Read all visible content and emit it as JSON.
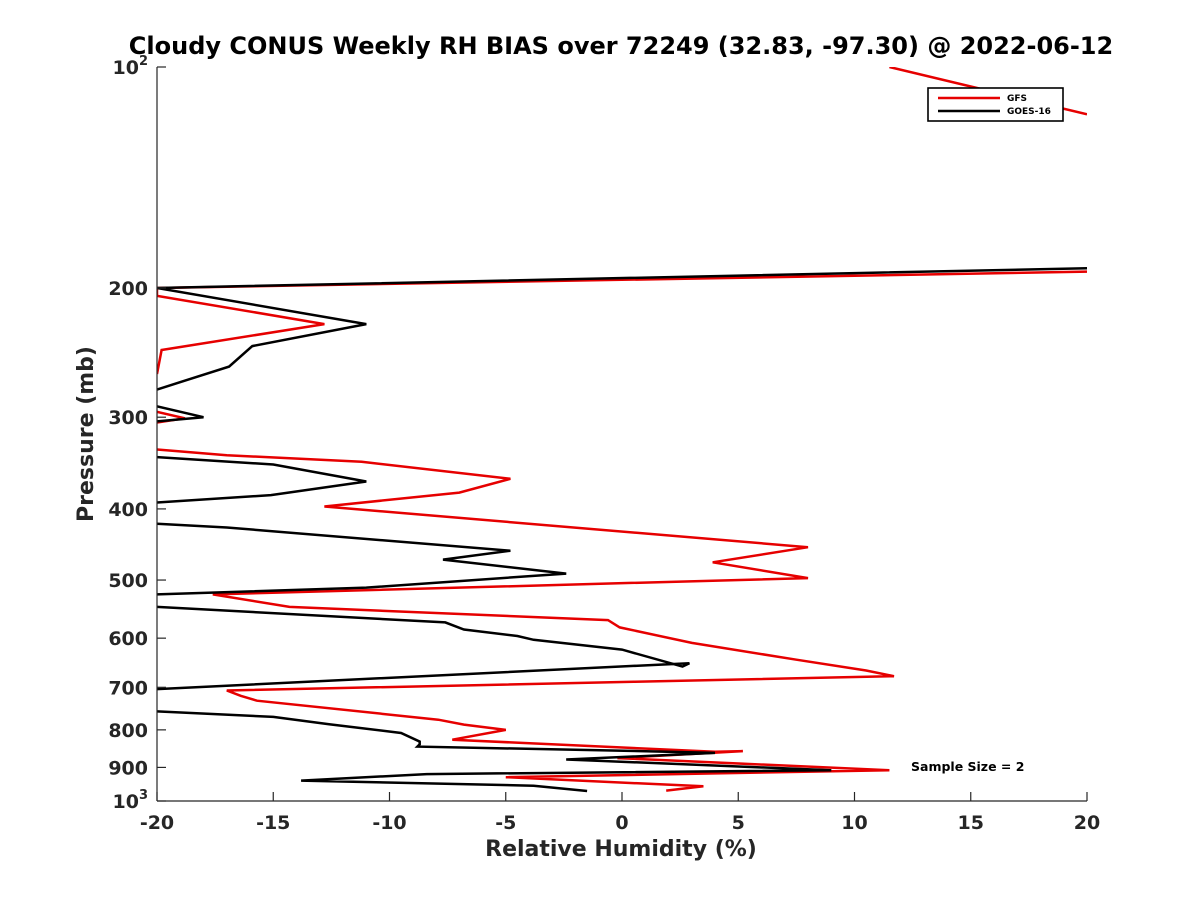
{
  "chart_data": {
    "type": "line",
    "title": "Cloudy CONUS Weekly RH BIAS over 72249 (32.83, -97.30) @ 2022-06-12",
    "xlabel": "Relative Humidity (%)",
    "ylabel": "Pressure (mb)",
    "xlim": [
      -20,
      20
    ],
    "ylim": [
      100,
      1000
    ],
    "y_scale": "log",
    "y_reversed": true,
    "x_ticks": [
      "-20",
      "-15",
      "-10",
      "-5",
      "0",
      "5",
      "10",
      "15",
      "20"
    ],
    "y_ticks": [
      {
        "value": 100,
        "base": "10",
        "exp": "2"
      },
      {
        "value": 200,
        "label": "200"
      },
      {
        "value": 300,
        "label": "300"
      },
      {
        "value": 400,
        "label": "400"
      },
      {
        "value": 500,
        "label": "500"
      },
      {
        "value": 600,
        "label": "600"
      },
      {
        "value": 700,
        "label": "700"
      },
      {
        "value": 800,
        "label": "800"
      },
      {
        "value": 900,
        "label": "900"
      },
      {
        "value": 1000,
        "base": "10",
        "exp": "3"
      }
    ],
    "grid": false,
    "legend_position": "top-right",
    "annotation": "Sample Size = 2",
    "series": [
      {
        "name": "GFS",
        "color": "#e60000",
        "points": [
          [
            11.5,
            100
          ],
          [
            20,
            116
          ],
          [
            null,
            null
          ],
          [
            20,
            190
          ],
          [
            -20,
            200
          ],
          [
            -20,
            205
          ],
          [
            -12.8,
            224
          ],
          [
            -19.8,
            243
          ],
          [
            -20,
            262
          ],
          [
            null,
            null
          ],
          [
            -20,
            295
          ],
          [
            -18.8,
            301
          ],
          [
            -20,
            305
          ],
          [
            null,
            null
          ],
          [
            -20,
            332
          ],
          [
            -17,
            338
          ],
          [
            -11.2,
            345
          ],
          [
            -4.8,
            364
          ],
          [
            -7,
            380
          ],
          [
            -12.8,
            397
          ],
          [
            8,
            451
          ],
          [
            3.9,
            473
          ],
          [
            8,
            497
          ],
          [
            -17.6,
            523
          ],
          [
            -14.3,
            544
          ],
          [
            -0.6,
            567
          ],
          [
            -0.1,
            580
          ],
          [
            3,
            609
          ],
          [
            7.5,
            642
          ],
          [
            10.5,
            664
          ],
          [
            11.7,
            676
          ],
          [
            0.5,
            688
          ],
          [
            -17,
            707
          ],
          [
            -16.4,
            719
          ],
          [
            -15.7,
            730
          ],
          [
            -7.9,
            775
          ],
          [
            -6.8,
            787
          ],
          [
            -5,
            800
          ],
          [
            -7.3,
            825
          ],
          [
            4,
            857
          ],
          [
            5.2,
            855
          ],
          [
            -0.2,
            874
          ],
          [
            11.5,
            908
          ],
          [
            -5,
            928
          ],
          [
            3.5,
            955
          ],
          [
            1.9,
            968
          ]
        ]
      },
      {
        "name": "GOES-16",
        "color": "#000000",
        "points": [
          [
            20,
            188
          ],
          [
            -20,
            200
          ],
          [
            -11,
            224
          ],
          [
            -15.9,
            240
          ],
          [
            -16.9,
            256
          ],
          [
            -20,
            275
          ],
          [
            null,
            null
          ],
          [
            -20,
            290
          ],
          [
            -18,
            300
          ],
          [
            -20,
            304
          ],
          [
            null,
            null
          ],
          [
            -20,
            340
          ],
          [
            -15,
            348
          ],
          [
            -11,
            367
          ],
          [
            -15.1,
            383
          ],
          [
            -20,
            392
          ],
          [
            null,
            null
          ],
          [
            -20,
            419
          ],
          [
            -17,
            424
          ],
          [
            -4.8,
            456
          ],
          [
            -7.7,
            469
          ],
          [
            -2.4,
            490
          ],
          [
            -11,
            512
          ],
          [
            -20,
            523
          ],
          [
            null,
            null
          ],
          [
            -20,
            544
          ],
          [
            -7.6,
            571
          ],
          [
            -6.8,
            584
          ],
          [
            -4.5,
            596
          ],
          [
            -3.8,
            603
          ],
          [
            0,
            622
          ],
          [
            2.6,
            656
          ],
          [
            2.9,
            649
          ],
          [
            -20,
            704
          ],
          [
            null,
            null
          ],
          [
            -20,
            755
          ],
          [
            -15,
            768
          ],
          [
            -12.6,
            786
          ],
          [
            -9.5,
            808
          ],
          [
            -8.7,
            830
          ],
          [
            -8.7,
            837
          ],
          [
            -8.8,
            843
          ],
          [
            0.8,
            855
          ],
          [
            4,
            860
          ],
          [
            -2.4,
            878
          ],
          [
            9,
            908
          ],
          [
            -8.4,
            919
          ],
          [
            -13.8,
            938
          ],
          [
            -3.8,
            953
          ],
          [
            -1.5,
            969
          ]
        ]
      }
    ]
  }
}
